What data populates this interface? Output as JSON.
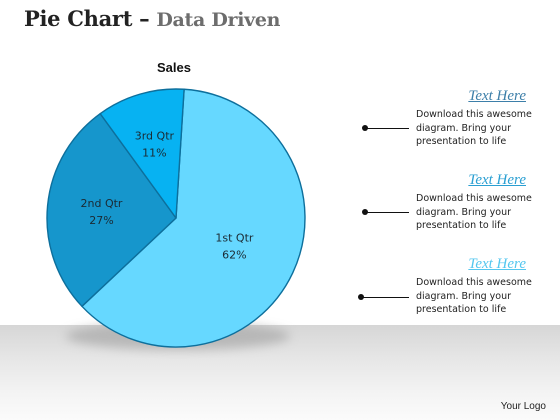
{
  "header": {
    "title": "Pie Chart –",
    "subtitle": "Data Driven"
  },
  "chart_data": {
    "type": "pie",
    "title": "Sales",
    "categories": [
      "1st Qtr",
      "2nd Qtr",
      "3rd Qtr"
    ],
    "values": [
      62,
      27,
      11
    ],
    "value_labels": [
      "62%",
      "27%",
      "11%"
    ],
    "colors": [
      "#66d8ff",
      "#1696cc",
      "#07b2f2"
    ]
  },
  "callouts": [
    {
      "heading": "Text Here",
      "heading_color": "#3d7fa9",
      "line1": "Download this awesome",
      "line2": "diagram. Bring your",
      "line3": "presentation to life"
    },
    {
      "heading": "Text Here",
      "heading_color": "#2a9fd2",
      "line1": "Download this awesome",
      "line2": "diagram. Bring your",
      "line3": "presentation to life"
    },
    {
      "heading": "Text Here",
      "heading_color": "#55c7ef",
      "line1": "Download this awesome",
      "line2": "diagram. Bring your",
      "line3": "presentation to life"
    }
  ],
  "footer": {
    "logo_text": "Your Logo"
  }
}
